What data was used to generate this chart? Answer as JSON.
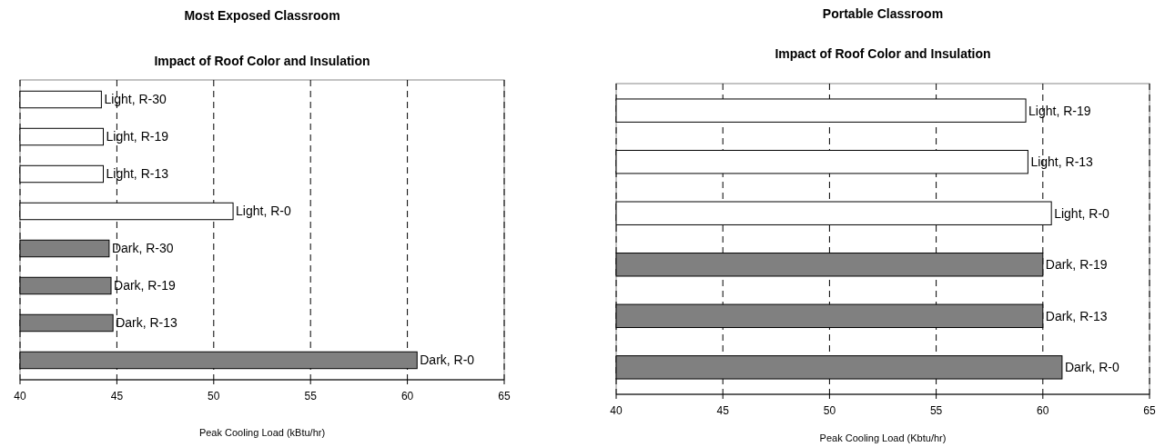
{
  "chart_data": [
    {
      "type": "bar",
      "orientation": "horizontal",
      "title": "Most Exposed Classroom",
      "subtitle": "Impact of Roof Color and  Insulation",
      "xlabel": "Peak Cooling Load (kBtu/hr)",
      "categories": [
        "Light, R-30",
        "Light, R-19",
        "Light, R-13",
        "Light, R-0",
        "Dark, R-30",
        "Dark, R-19",
        "Dark, R-13",
        "Dark, R-0"
      ],
      "values": [
        44.2,
        44.3,
        44.3,
        51.0,
        44.6,
        44.7,
        44.8,
        60.5
      ],
      "colors": [
        "#ffffff",
        "#ffffff",
        "#ffffff",
        "#ffffff",
        "#808080",
        "#808080",
        "#808080",
        "#808080"
      ],
      "xlim": [
        40,
        65
      ],
      "xticks": [
        40,
        45,
        50,
        55,
        60,
        65
      ],
      "grid": "x",
      "tick_labels": "x"
    },
    {
      "type": "bar",
      "orientation": "horizontal",
      "title": "Portable Classroom",
      "subtitle": "Impact of Roof Color and  Insulation",
      "xlabel": "Peak Cooling Load (Kbtu/hr)",
      "categories": [
        "Light, R-19",
        "Light, R-13",
        "Light, R-0",
        "Dark, R-19",
        "Dark, R-13",
        "Dark, R-0"
      ],
      "values": [
        59.2,
        59.3,
        60.4,
        60.0,
        60.0,
        60.9
      ],
      "colors": [
        "#ffffff",
        "#ffffff",
        "#ffffff",
        "#808080",
        "#808080",
        "#808080"
      ],
      "xlim": [
        40,
        65
      ],
      "xticks": [
        40,
        45,
        50,
        55,
        60,
        65
      ],
      "grid": "x",
      "tick_labels": "x"
    }
  ]
}
